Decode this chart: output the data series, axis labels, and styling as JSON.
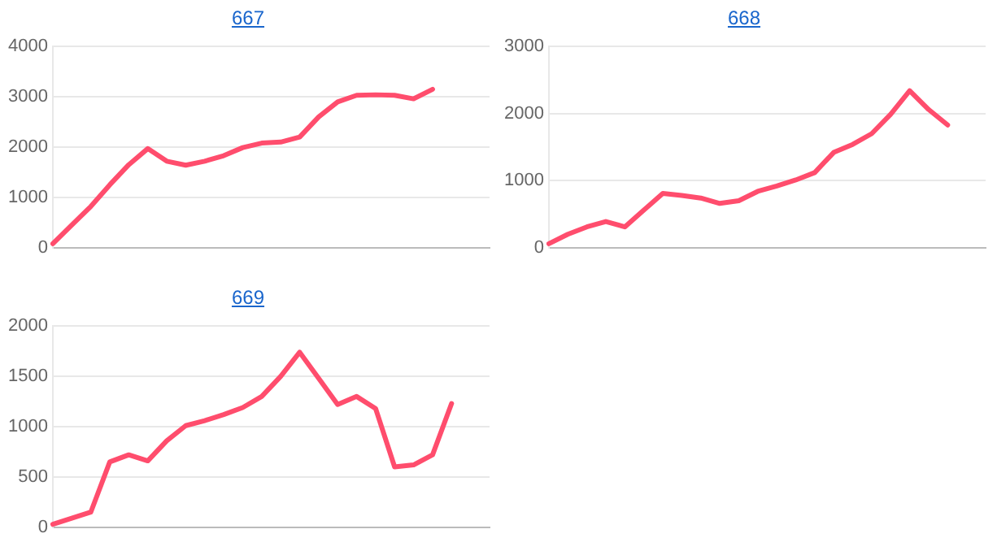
{
  "chart_data": [
    {
      "type": "line",
      "title": "667",
      "categories": [
        null,
        null,
        null,
        null,
        null,
        null,
        null,
        null,
        null,
        null,
        null,
        null,
        null,
        null,
        null,
        null,
        null,
        null,
        null,
        null,
        null,
        null,
        null,
        null
      ],
      "series": [
        {
          "color": "#ff4d6d",
          "values": [
            80,
            450,
            820,
            1250,
            1650,
            1970,
            1720,
            1640,
            1720,
            1830,
            1990,
            2080,
            2100,
            2200,
            2600,
            2900,
            3030,
            3040,
            3030,
            2960,
            3150,
            null,
            null,
            null
          ]
        }
      ],
      "ylim": [
        0,
        4000
      ],
      "yticks": [
        0,
        1000,
        2000,
        3000,
        4000
      ],
      "grid": "y",
      "legend": false,
      "marker": "none",
      "line_style": "solid",
      "tick_labels": "y"
    },
    {
      "type": "line",
      "title": "668",
      "categories": [
        null,
        null,
        null,
        null,
        null,
        null,
        null,
        null,
        null,
        null,
        null,
        null,
        null,
        null,
        null,
        null,
        null,
        null,
        null,
        null,
        null,
        null,
        null,
        null
      ],
      "series": [
        {
          "color": "#ff4d6d",
          "values": [
            60,
            200,
            310,
            390,
            310,
            560,
            810,
            780,
            740,
            660,
            700,
            840,
            920,
            1010,
            1120,
            1420,
            1540,
            1700,
            1990,
            2340,
            2060,
            1830,
            null,
            null
          ]
        }
      ],
      "ylim": [
        0,
        3000
      ],
      "yticks": [
        0,
        1000,
        2000,
        3000
      ],
      "grid": "y",
      "legend": false,
      "marker": "none",
      "line_style": "solid",
      "tick_labels": "y"
    },
    {
      "type": "line",
      "title": "669",
      "categories": [
        null,
        null,
        null,
        null,
        null,
        null,
        null,
        null,
        null,
        null,
        null,
        null,
        null,
        null,
        null,
        null,
        null,
        null,
        null,
        null,
        null,
        null,
        null,
        null
      ],
      "series": [
        {
          "color": "#ff4d6d",
          "values": [
            30,
            90,
            150,
            650,
            720,
            660,
            860,
            1010,
            1060,
            1120,
            1190,
            1300,
            1500,
            1740,
            1480,
            1220,
            1300,
            1180,
            600,
            620,
            720,
            1230,
            null,
            null
          ]
        }
      ],
      "ylim": [
        0,
        2000
      ],
      "yticks": [
        0,
        500,
        1000,
        1500,
        2000
      ],
      "grid": "y",
      "legend": false,
      "marker": "none",
      "line_style": "solid",
      "tick_labels": "y"
    }
  ]
}
